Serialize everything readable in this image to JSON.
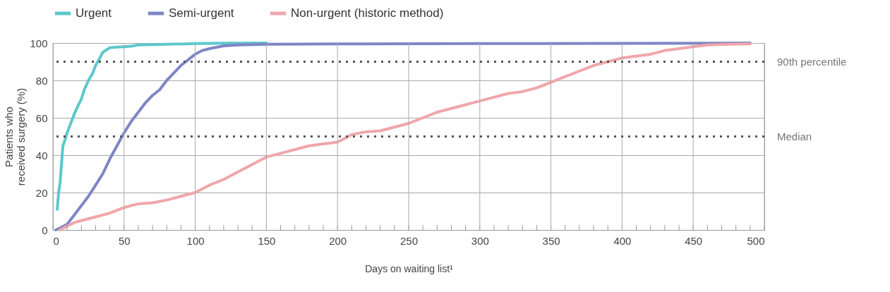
{
  "chart_data": {
    "type": "line",
    "xlabel": "Days on waiting list¹",
    "ylabel": "Patients who\nreceived surgery (%)",
    "xlim": [
      0,
      500
    ],
    "ylim": [
      0,
      100
    ],
    "xticks": [
      0,
      {
        "value": 10,
        "label": null
      },
      {
        "value": 20,
        "label": null
      },
      {
        "value": 30,
        "label": null
      },
      {
        "value": 40,
        "label": null
      },
      50,
      {
        "value": 60,
        "label": null
      },
      {
        "value": 70,
        "label": null
      },
      {
        "value": 80,
        "label": null
      },
      {
        "value": 90,
        "label": null
      },
      100,
      {
        "value": 110,
        "label": null
      },
      {
        "value": 120,
        "label": null
      },
      {
        "value": 130,
        "label": null
      },
      {
        "value": 140,
        "label": null
      },
      150,
      {
        "value": 160,
        "label": null
      },
      {
        "value": 170,
        "label": null
      },
      {
        "value": 180,
        "label": null
      },
      {
        "value": 190,
        "label": null
      },
      200,
      {
        "value": 210,
        "label": null
      },
      {
        "value": 220,
        "label": null
      },
      {
        "value": 230,
        "label": null
      },
      {
        "value": 240,
        "label": null
      },
      250,
      {
        "value": 260,
        "label": null
      },
      {
        "value": 270,
        "label": null
      },
      {
        "value": 280,
        "label": null
      },
      {
        "value": 290,
        "label": null
      },
      300,
      {
        "value": 310,
        "label": null
      },
      {
        "value": 320,
        "label": null
      },
      {
        "value": 330,
        "label": null
      },
      {
        "value": 340,
        "label": null
      },
      350,
      {
        "value": 360,
        "label": null
      },
      {
        "value": 370,
        "label": null
      },
      {
        "value": 380,
        "label": null
      },
      {
        "value": 390,
        "label": null
      },
      400,
      {
        "value": 410,
        "label": null
      },
      {
        "value": 420,
        "label": null
      },
      {
        "value": 430,
        "label": null
      },
      {
        "value": 440,
        "label": null
      },
      450,
      {
        "value": 460,
        "label": null
      },
      {
        "value": 470,
        "label": null
      },
      {
        "value": 480,
        "label": null
      },
      {
        "value": 490,
        "label": null
      },
      500
    ],
    "yticks": [
      0,
      20,
      40,
      60,
      80,
      100
    ],
    "grid": true,
    "legend": "top left",
    "marker": "none",
    "line_style": "solid",
    "series": [
      {
        "name": "Urgent",
        "color": "#5cc8cc",
        "x": [
          3,
          4,
          5,
          6,
          7,
          8,
          10,
          12,
          15,
          18,
          20,
          22,
          25,
          28,
          30,
          33,
          35,
          38,
          40,
          45,
          50,
          55,
          60,
          80,
          100,
          120,
          150
        ],
        "values": [
          11,
          20,
          25,
          35,
          45,
          47,
          52,
          56,
          62,
          67,
          70,
          75,
          80,
          84,
          88,
          92,
          95,
          96.5,
          97.5,
          97.8,
          98,
          98.3,
          99,
          99.3,
          99.7,
          99.9,
          100
        ]
      },
      {
        "name": "Semi-urgent",
        "color": "#7f86c5",
        "x": [
          2,
          5,
          10,
          15,
          20,
          25,
          30,
          35,
          40,
          45,
          50,
          55,
          60,
          65,
          70,
          75,
          80,
          85,
          90,
          95,
          100,
          105,
          110,
          120,
          130,
          150,
          200,
          300,
          400,
          490
        ],
        "values": [
          0,
          1,
          3,
          8,
          13,
          18,
          24,
          30,
          38,
          45,
          52,
          58,
          63,
          68,
          72,
          75,
          80,
          84,
          88,
          91,
          94,
          96,
          97,
          98.5,
          99,
          99.3,
          99.5,
          99.7,
          99.8,
          100
        ]
      },
      {
        "name": "Non-urgent (historic method)",
        "color": "#f0a6ab",
        "x": [
          5,
          10,
          15,
          20,
          30,
          40,
          50,
          60,
          70,
          80,
          90,
          100,
          110,
          120,
          130,
          140,
          150,
          160,
          170,
          180,
          190,
          200,
          205,
          210,
          220,
          230,
          240,
          250,
          260,
          270,
          280,
          290,
          300,
          310,
          320,
          330,
          340,
          350,
          360,
          370,
          380,
          390,
          400,
          410,
          420,
          430,
          440,
          450,
          460,
          470,
          490
        ],
        "values": [
          0,
          2,
          4,
          5,
          7,
          9,
          12,
          14,
          14.5,
          16,
          18,
          20,
          24,
          27,
          31,
          35,
          39,
          41,
          43,
          45,
          46,
          47,
          49,
          51,
          52.5,
          53,
          55,
          57,
          60,
          63,
          65,
          67,
          69,
          71,
          73,
          74,
          76,
          79,
          82,
          85,
          88,
          90,
          92,
          93,
          94,
          96,
          97,
          98,
          99,
          99.2,
          99.5
        ]
      }
    ],
    "ref_lines": [
      {
        "axis": "y",
        "value": 90,
        "label": "90th percentile",
        "color": "#555555",
        "line_style": "dotted"
      },
      {
        "axis": "y",
        "value": 50,
        "label": "Median",
        "color": "#555555",
        "line_style": "dotted"
      }
    ]
  }
}
